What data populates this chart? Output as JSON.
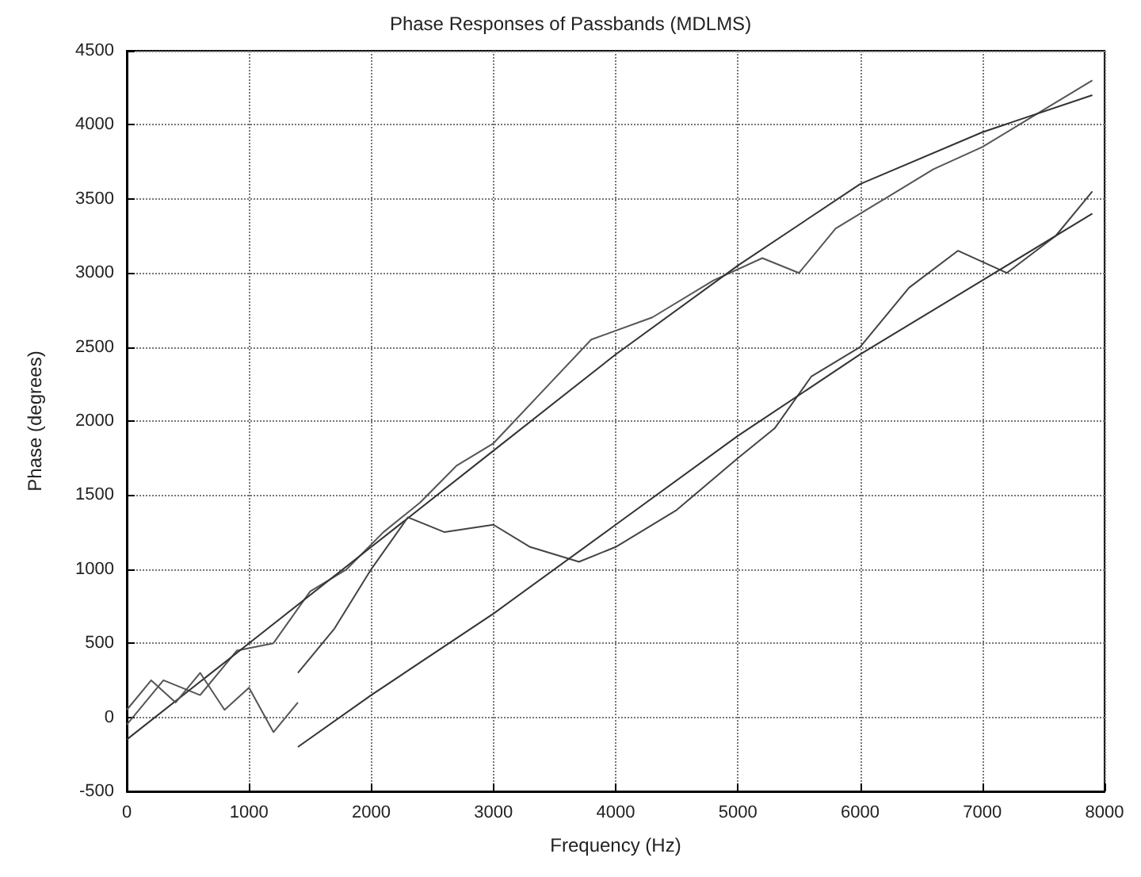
{
  "chart_data": {
    "type": "line",
    "title": "Phase Responses of Passbands (MDLMS)",
    "xlabel": "Frequency (Hz)",
    "ylabel": "Phase (degrees)",
    "xlim": [
      0,
      8000
    ],
    "xticks": [
      0,
      1000,
      2000,
      3000,
      4000,
      5000,
      6000,
      7000,
      8000
    ],
    "ylim": [
      -500,
      4500
    ],
    "yticks": [
      -500,
      0,
      500,
      1000,
      1500,
      2000,
      2500,
      3000,
      3500,
      4000,
      4500
    ],
    "grid": true,
    "marker": "none",
    "line_style": "solid",
    "series": [
      {
        "color": "#555555",
        "x": [
          0,
          300,
          600,
          900,
          1200,
          1500,
          1800,
          2100,
          2400,
          2700,
          3000,
          3400,
          3800,
          4300,
          4800,
          5200,
          5500,
          5800,
          6200,
          6600,
          7000,
          7500,
          7900
        ],
        "values": [
          -50,
          250,
          150,
          450,
          500,
          850,
          1000,
          1250,
          1450,
          1700,
          1850,
          2200,
          2550,
          2700,
          2950,
          3100,
          3000,
          3300,
          3500,
          3700,
          3850,
          4100,
          4300
        ]
      },
      {
        "color": "#333333",
        "x": [
          0,
          1000,
          2000,
          3000,
          4000,
          5000,
          6000,
          7000,
          7900
        ],
        "values": [
          -150,
          500,
          1150,
          1800,
          2450,
          3050,
          3600,
          3950,
          4200
        ]
      },
      {
        "color": "#444444",
        "x": [
          1400,
          1700,
          2000,
          2300,
          2600,
          3000,
          3300,
          3700,
          4000,
          4500,
          5000,
          5300,
          5600,
          6000,
          6400,
          6800,
          7200,
          7600,
          7900
        ],
        "values": [
          300,
          600,
          1000,
          1350,
          1250,
          1300,
          1150,
          1050,
          1150,
          1400,
          1750,
          1950,
          2300,
          2500,
          2900,
          3150,
          3000,
          3250,
          3550
        ]
      },
      {
        "color": "#333333",
        "x": [
          1400,
          2000,
          3000,
          4000,
          5000,
          6000,
          7000,
          7900
        ],
        "values": [
          -200,
          150,
          700,
          1300,
          1900,
          2450,
          2950,
          3400
        ]
      },
      {
        "color": "#555555",
        "x": [
          0,
          200,
          400,
          600,
          800,
          1000,
          1200,
          1400
        ],
        "values": [
          50,
          250,
          100,
          300,
          50,
          200,
          -100,
          100
        ]
      }
    ]
  }
}
